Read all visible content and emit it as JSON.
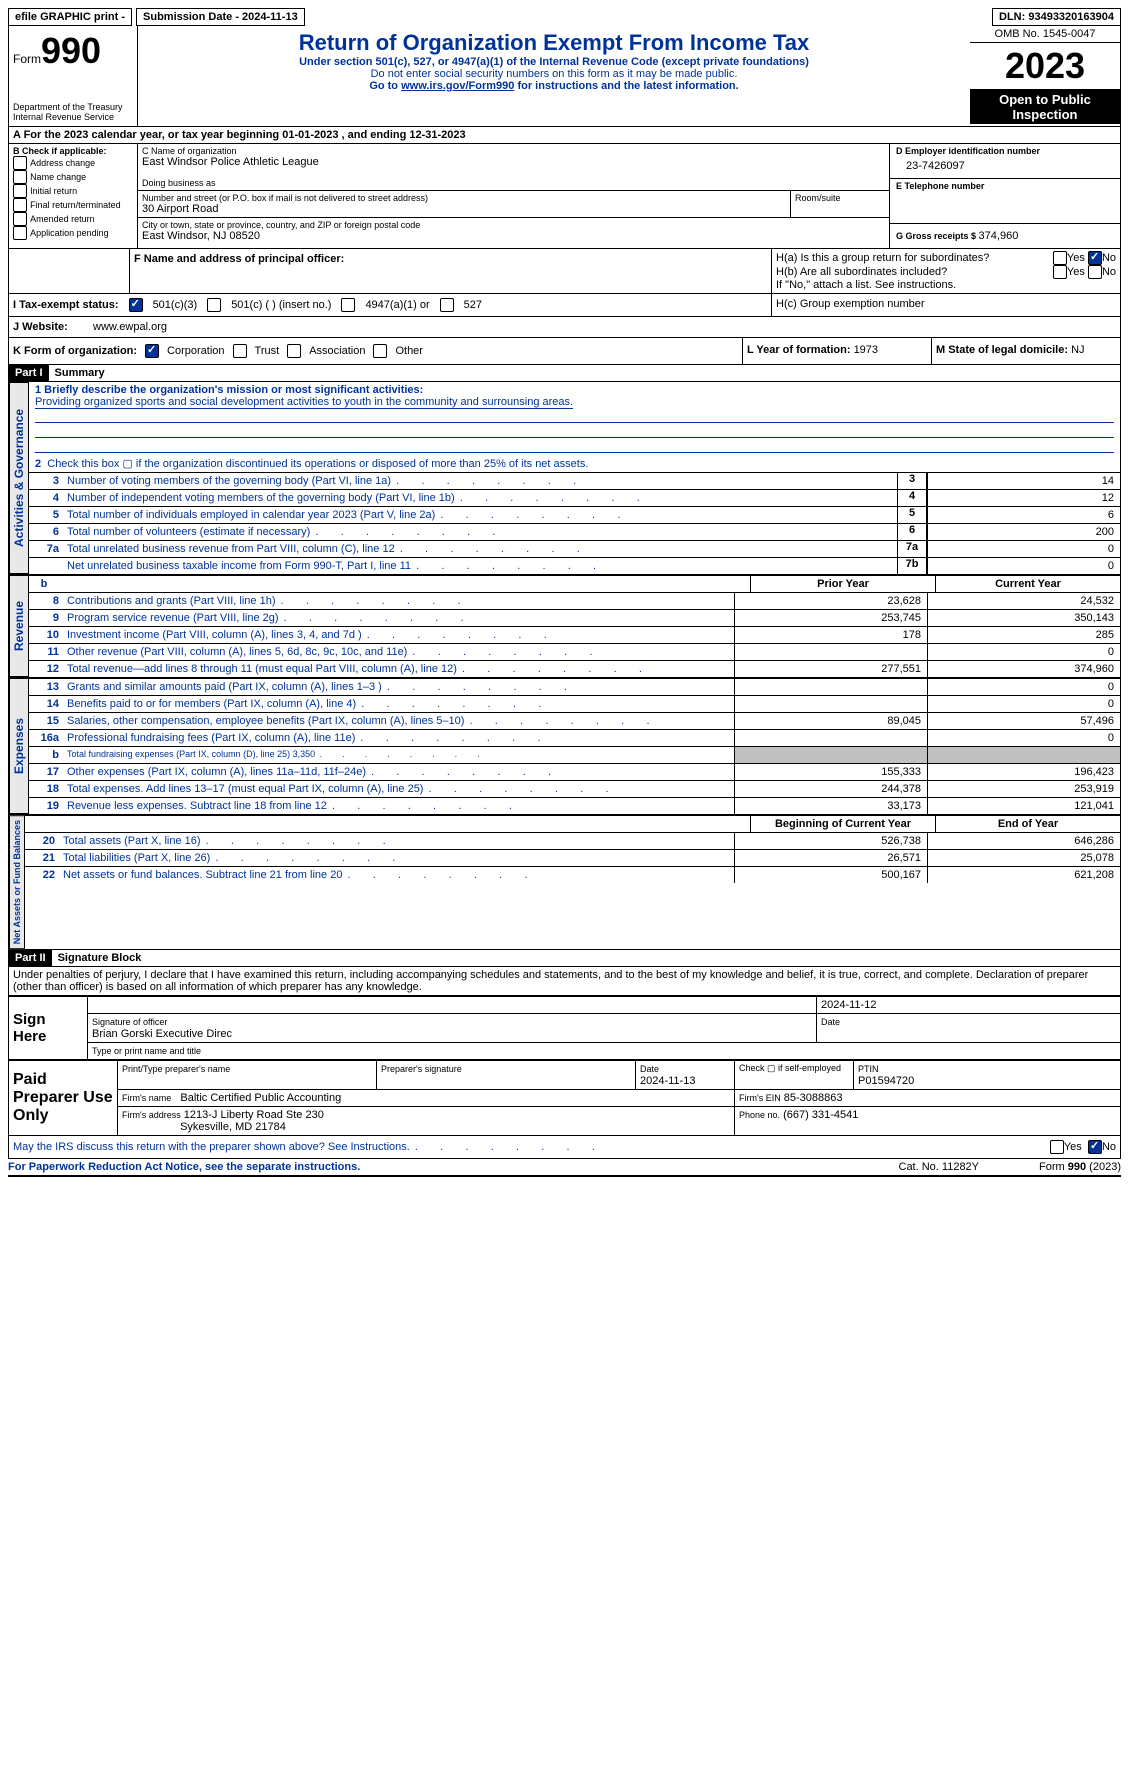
{
  "topbar": {
    "efile": "efile GRAPHIC print -",
    "submission_label": "Submission Date - 2024-11-13",
    "dln_label": "DLN: 93493320163904"
  },
  "header": {
    "form_label": "Form",
    "form_no": "990",
    "dept1": "Department of the Treasury",
    "dept2": "Internal Revenue Service",
    "title": "Return of Organization Exempt From Income Tax",
    "subtitle": "Under section 501(c), 527, or 4947(a)(1) of the Internal Revenue Code (except private foundations)",
    "note1": "Do not enter social security numbers on this form as it may be made public.",
    "note2_pre": "Go to ",
    "note2_link": "www.irs.gov/Form990",
    "note2_post": " for instructions and the latest information.",
    "omb": "OMB No. 1545-0047",
    "year": "2023",
    "open": "Open to Public Inspection"
  },
  "lineA": {
    "label_pre": "A For the 2023 calendar year, or tax year beginning ",
    "begin": "01-01-2023",
    "mid": " , and ending ",
    "end": "12-31-2023"
  },
  "boxB": {
    "title": "B Check if applicable:",
    "opts": [
      "Address change",
      "Name change",
      "Initial return",
      "Final return/terminated",
      "Amended return",
      "Application pending"
    ]
  },
  "boxC": {
    "name_label": "C Name of organization",
    "name": "East Windsor Police Athletic League",
    "dba_label": "Doing business as",
    "street_label": "Number and street (or P.O. box if mail is not delivered to street address)",
    "street": "30 Airport Road",
    "room_label": "Room/suite",
    "city_label": "City or town, state or province, country, and ZIP or foreign postal code",
    "city": "East Windsor, NJ  08520"
  },
  "boxD": {
    "label": "D Employer identification number",
    "val": "23-7426097"
  },
  "boxE": {
    "label": "E Telephone number"
  },
  "boxG": {
    "label": "G Gross receipts $ ",
    "val": "374,960"
  },
  "boxF": {
    "label": "F  Name and address of principal officer:"
  },
  "boxH": {
    "a": "H(a)  Is this a group return for subordinates?",
    "b": "H(b)  Are all subordinates included?",
    "b_note": "If \"No,\" attach a list. See instructions.",
    "c": "H(c)  Group exemption number",
    "yes": "Yes",
    "no": "No"
  },
  "taxExempt": {
    "label": "I  Tax-exempt status:",
    "o1": "501(c)(3)",
    "o2": "501(c) (  ) (insert no.)",
    "o3": "4947(a)(1) or",
    "o4": "527"
  },
  "website": {
    "label": "J  Website:",
    "val": "www.ewpal.org"
  },
  "boxK": {
    "label": "K Form of organization:",
    "o1": "Corporation",
    "o2": "Trust",
    "o3": "Association",
    "o4": "Other"
  },
  "boxL": {
    "label": "L Year of formation: ",
    "val": "1973"
  },
  "boxM": {
    "label": "M State of legal domicile: ",
    "val": "NJ"
  },
  "part1": {
    "tag": "Part I",
    "title": "Summary",
    "l1_label": "1  Briefly describe the organization's mission or most significant activities:",
    "l1_text": "Providing organized sports and social development activities to youth in the community and surrounsing areas.",
    "l2": "Check this box ▢ if the organization discontinued its operations or disposed of more than 25% of its net assets.",
    "rows_gov": [
      {
        "n": "3",
        "d": "Number of voting members of the governing body (Part VI, line 1a)",
        "box": "3",
        "v": "14"
      },
      {
        "n": "4",
        "d": "Number of independent voting members of the governing body (Part VI, line 1b)",
        "box": "4",
        "v": "12"
      },
      {
        "n": "5",
        "d": "Total number of individuals employed in calendar year 2023 (Part V, line 2a)",
        "box": "5",
        "v": "6"
      },
      {
        "n": "6",
        "d": "Total number of volunteers (estimate if necessary)",
        "box": "6",
        "v": "200"
      },
      {
        "n": "7a",
        "d": "Total unrelated business revenue from Part VIII, column (C), line 12",
        "box": "7a",
        "v": "0"
      },
      {
        "n": "",
        "d": "Net unrelated business taxable income from Form 990-T, Part I, line 11",
        "box": "7b",
        "v": "0"
      }
    ],
    "col_hdr_prior": "Prior Year",
    "col_hdr_curr": "Current Year",
    "rows_rev": [
      {
        "n": "8",
        "d": "Contributions and grants (Part VIII, line 1h)",
        "a": "23,628",
        "b": "24,532"
      },
      {
        "n": "9",
        "d": "Program service revenue (Part VIII, line 2g)",
        "a": "253,745",
        "b": "350,143"
      },
      {
        "n": "10",
        "d": "Investment income (Part VIII, column (A), lines 3, 4, and 7d )",
        "a": "178",
        "b": "285"
      },
      {
        "n": "11",
        "d": "Other revenue (Part VIII, column (A), lines 5, 6d, 8c, 9c, 10c, and 11e)",
        "a": "",
        "b": "0"
      },
      {
        "n": "12",
        "d": "Total revenue—add lines 8 through 11 (must equal Part VIII, column (A), line 12)",
        "a": "277,551",
        "b": "374,960"
      }
    ],
    "rows_exp": [
      {
        "n": "13",
        "d": "Grants and similar amounts paid (Part IX, column (A), lines 1–3 )",
        "a": "",
        "b": "0"
      },
      {
        "n": "14",
        "d": "Benefits paid to or for members (Part IX, column (A), line 4)",
        "a": "",
        "b": "0"
      },
      {
        "n": "15",
        "d": "Salaries, other compensation, employee benefits (Part IX, column (A), lines 5–10)",
        "a": "89,045",
        "b": "57,496"
      },
      {
        "n": "16a",
        "d": "Professional fundraising fees (Part IX, column (A), line 11e)",
        "a": "",
        "b": "0"
      },
      {
        "n": "b",
        "d": "Total fundraising expenses (Part IX, column (D), line 25) 3,350",
        "a": "grey",
        "b": "grey"
      },
      {
        "n": "17",
        "d": "Other expenses (Part IX, column (A), lines 11a–11d, 11f–24e)",
        "a": "155,333",
        "b": "196,423"
      },
      {
        "n": "18",
        "d": "Total expenses. Add lines 13–17 (must equal Part IX, column (A), line 25)",
        "a": "244,378",
        "b": "253,919"
      },
      {
        "n": "19",
        "d": "Revenue less expenses. Subtract line 18 from line 12",
        "a": "33,173",
        "b": "121,041"
      }
    ],
    "col_hdr_begin": "Beginning of Current Year",
    "col_hdr_end": "End of Year",
    "rows_net": [
      {
        "n": "20",
        "d": "Total assets (Part X, line 16)",
        "a": "526,738",
        "b": "646,286"
      },
      {
        "n": "21",
        "d": "Total liabilities (Part X, line 26)",
        "a": "26,571",
        "b": "25,078"
      },
      {
        "n": "22",
        "d": "Net assets or fund balances. Subtract line 21 from line 20",
        "a": "500,167",
        "b": "621,208"
      }
    ]
  },
  "vtabs": {
    "gov": "Activities & Governance",
    "rev": "Revenue",
    "exp": "Expenses",
    "net": "Net Assets or Fund Balances"
  },
  "part2": {
    "tag": "Part II",
    "title": "Signature Block",
    "decl": "Under penalties of perjury, I declare that I have examined this return, including accompanying schedules and statements, and to the best of my knowledge and belief, it is true, correct, and complete. Declaration of preparer (other than officer) is based on all information of which preparer has any knowledge."
  },
  "sign": {
    "here": "Sign Here",
    "sig_label": "Signature of officer",
    "date_label": "Date",
    "officer": "Brian Gorski  Executive Direc",
    "type_label": "Type or print name and title",
    "date": "2024-11-12"
  },
  "paid": {
    "title": "Paid Preparer Use Only",
    "name_label": "Print/Type preparer's name",
    "sig_label": "Preparer's signature",
    "date_label": "Date",
    "date": "2024-11-13",
    "check_label": "Check ▢ if self-employed",
    "ptin_label": "PTIN",
    "ptin": "P01594720",
    "firm_name_label": "Firm's name",
    "firm_name": "Baltic Certified Public Accounting",
    "firm_ein_label": "Firm's EIN",
    "firm_ein": "85-3088863",
    "firm_addr_label": "Firm's address",
    "firm_addr1": "1213-J Liberty Road Ste 230",
    "firm_addr2": "Sykesville, MD  21784",
    "phone_label": "Phone no.",
    "phone": "(667) 331-4541"
  },
  "footer": {
    "discuss": "May the IRS discuss this return with the preparer shown above? See Instructions.",
    "yes": "Yes",
    "no": "No",
    "pra": "For Paperwork Reduction Act Notice, see the separate instructions.",
    "cat": "Cat. No. 11282Y",
    "form": "Form 990 (2023)"
  }
}
